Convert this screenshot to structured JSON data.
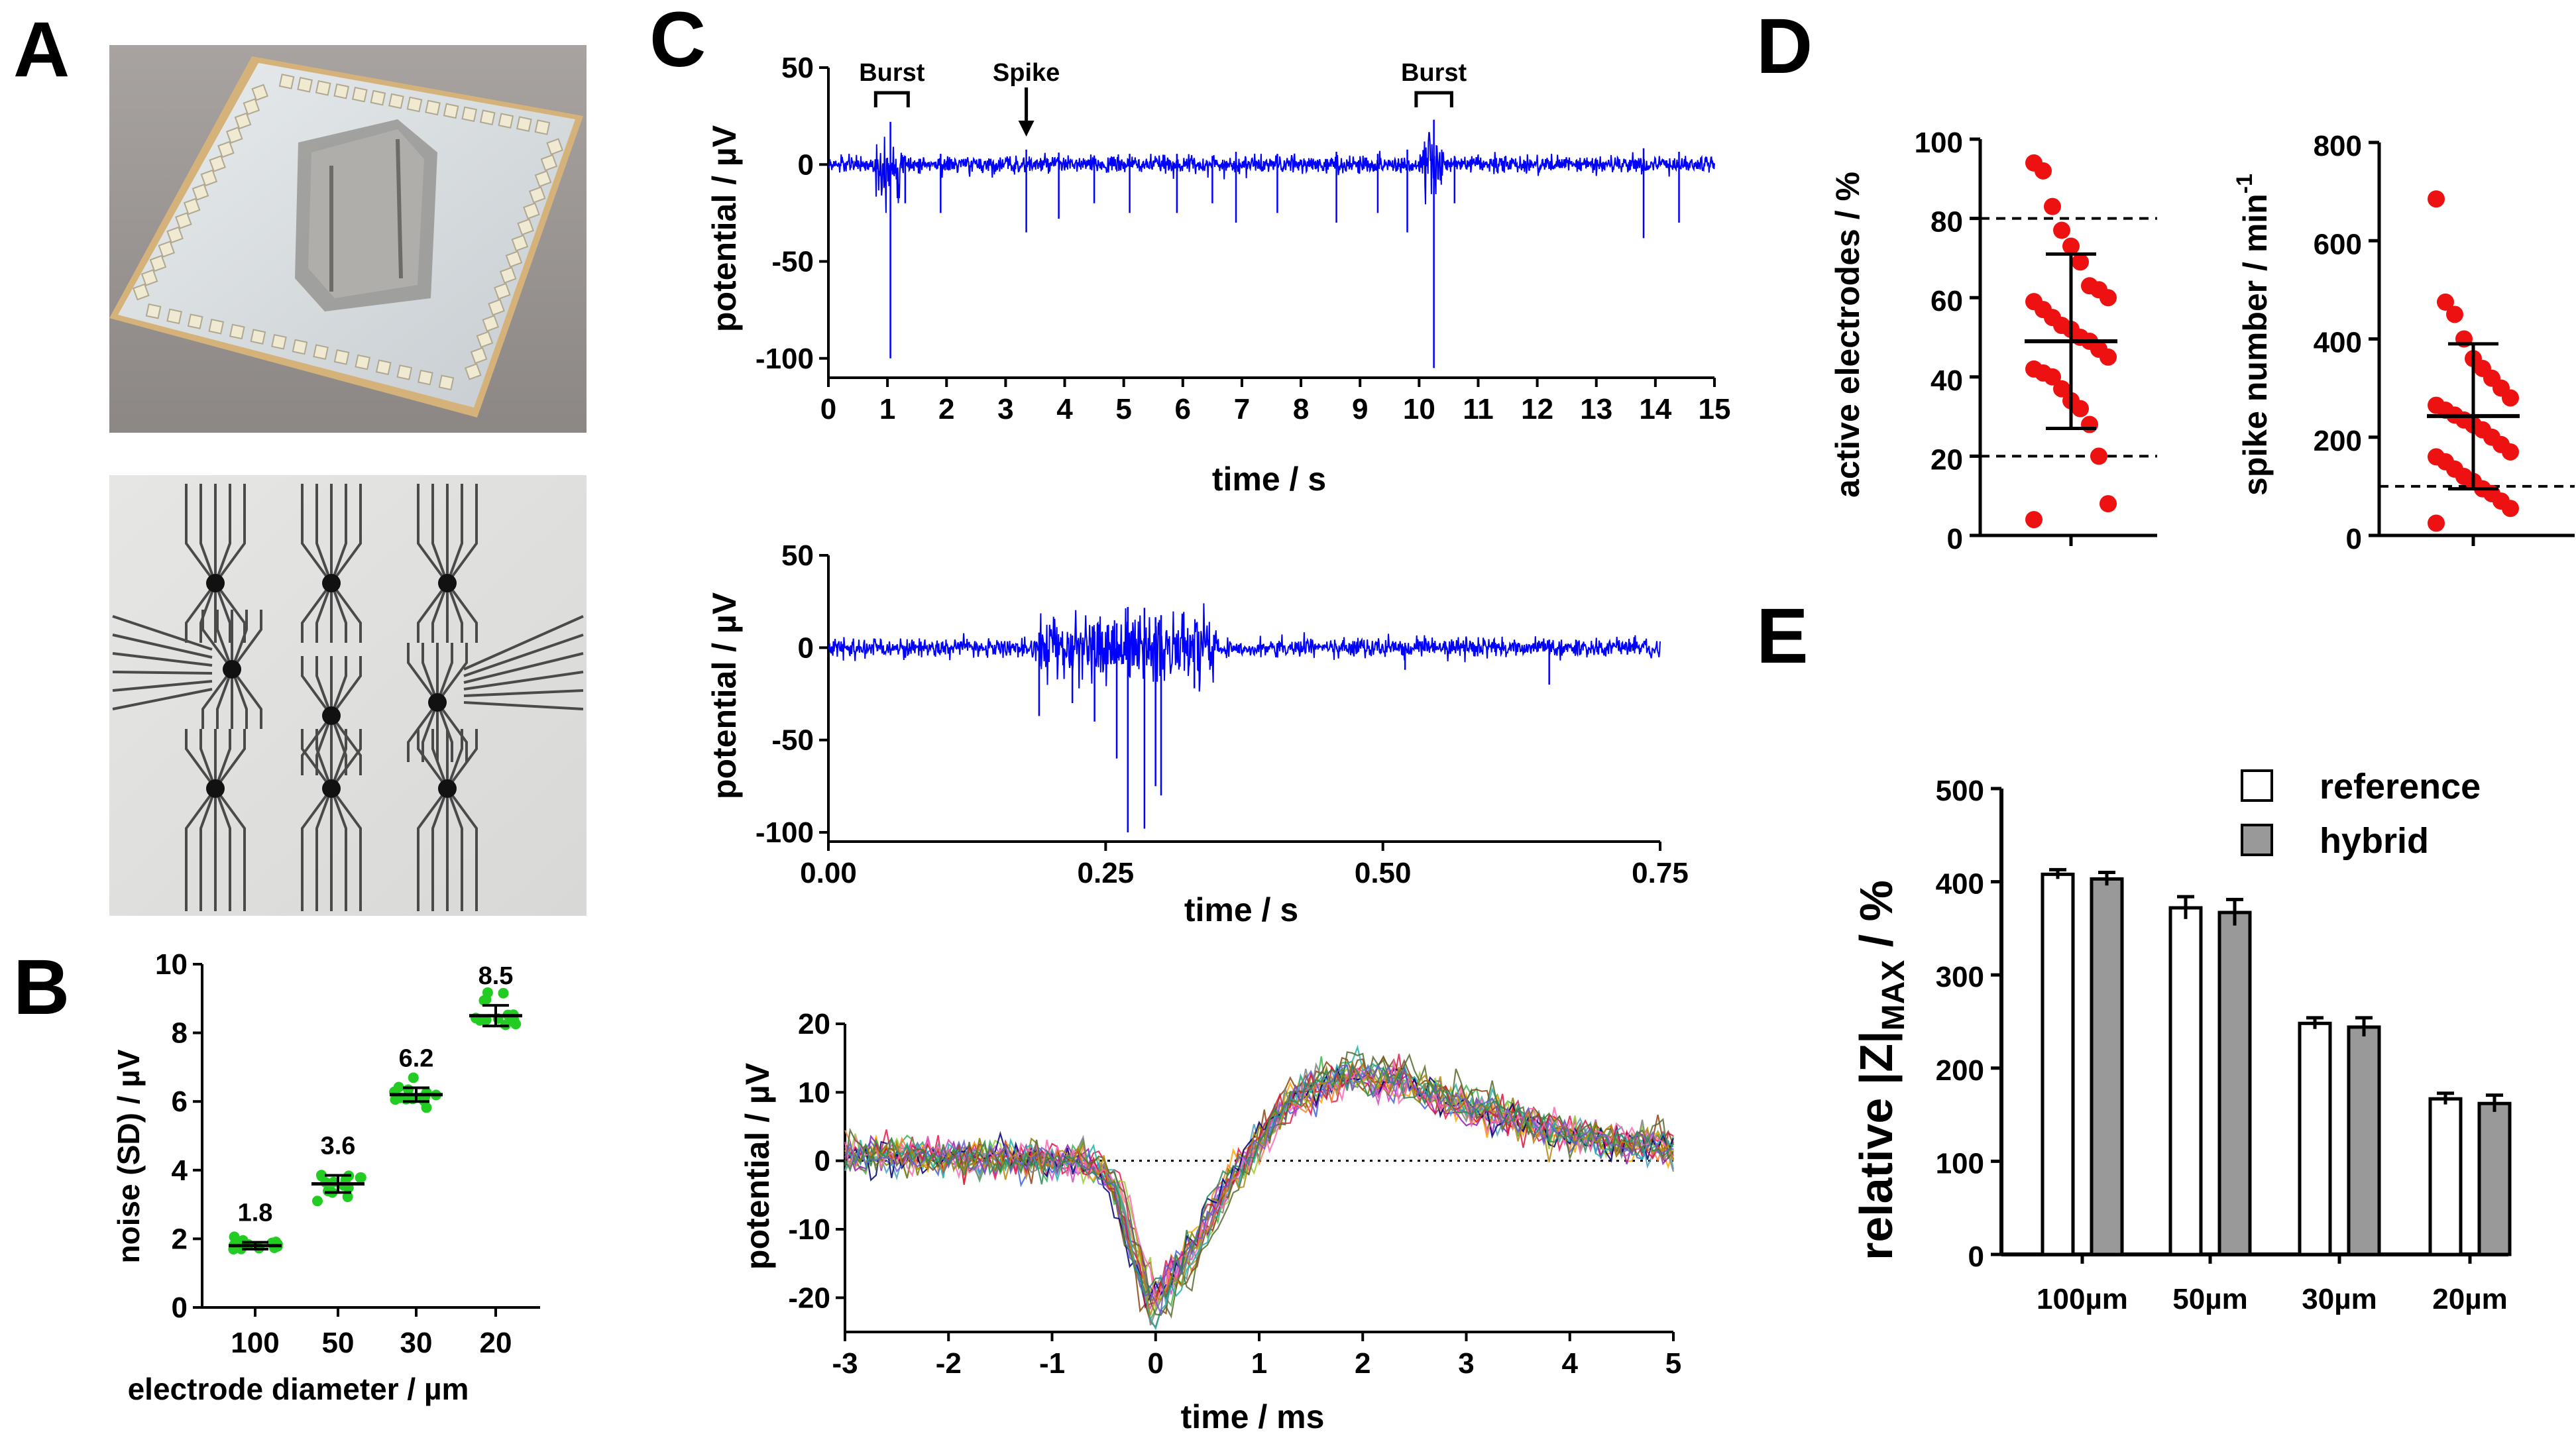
{
  "panel_labels": {
    "a": "A",
    "b": "B",
    "c": "C",
    "d": "D",
    "e": "E"
  },
  "chart_data": [
    {
      "id": "B",
      "type": "scatter",
      "categories": [
        "100",
        "50",
        "30",
        "20"
      ],
      "means": [
        1.8,
        3.6,
        6.2,
        8.5
      ],
      "sd": [
        0.1,
        0.25,
        0.2,
        0.3
      ],
      "value_labels": [
        "1.8",
        "3.6",
        "6.2",
        "8.5"
      ],
      "xlabel": "electrode diameter / µm",
      "ylabel": "noise (SD) / µV",
      "ylim": [
        0,
        10
      ],
      "yticks": [
        "0",
        "2",
        "4",
        "6",
        "8",
        "10"
      ],
      "point_color": "#22cc22"
    },
    {
      "id": "C1",
      "type": "line",
      "xlabel": "time / s",
      "ylabel": "potential / µV",
      "xlim": [
        0,
        15
      ],
      "ylim": [
        -110,
        50
      ],
      "xticks": [
        "0",
        "1",
        "2",
        "3",
        "4",
        "5",
        "6",
        "7",
        "8",
        "9",
        "10",
        "11",
        "12",
        "13",
        "14",
        "15"
      ],
      "yticks": [
        "50",
        "0",
        "-50",
        "-100"
      ],
      "annotations": [
        {
          "text": "Burst",
          "x_start": 0.8,
          "x_end": 1.35
        },
        {
          "text": "Spike",
          "x": 3.35
        },
        {
          "text": "Burst",
          "x_start": 9.95,
          "x_end": 10.55
        }
      ],
      "spikes": [
        {
          "t": 1.05,
          "amp": -100
        },
        {
          "t": 10.25,
          "amp": -105
        },
        {
          "t": 1.3,
          "amp": -20
        },
        {
          "t": 1.9,
          "amp": -25
        },
        {
          "t": 3.35,
          "amp": -35
        },
        {
          "t": 3.9,
          "amp": -28
        },
        {
          "t": 4.5,
          "amp": -20
        },
        {
          "t": 5.1,
          "amp": -25
        },
        {
          "t": 5.9,
          "amp": -25
        },
        {
          "t": 6.5,
          "amp": -20
        },
        {
          "t": 6.9,
          "amp": -30
        },
        {
          "t": 7.6,
          "amp": -25
        },
        {
          "t": 8.6,
          "amp": -30
        },
        {
          "t": 9.3,
          "amp": -25
        },
        {
          "t": 9.8,
          "amp": -35
        },
        {
          "t": 10.6,
          "amp": -20
        },
        {
          "t": 13.8,
          "amp": -38
        },
        {
          "t": 14.4,
          "amp": -30
        }
      ],
      "color": "#0000ff"
    },
    {
      "id": "C2",
      "type": "line",
      "xlabel": "time / s",
      "ylabel": "potential / µV",
      "xlim": [
        0,
        0.75
      ],
      "ylim": [
        -105,
        50
      ],
      "xticks": [
        "0.00",
        "0.25",
        "0.50",
        "0.75"
      ],
      "yticks": [
        "50",
        "0",
        "-50",
        "-100"
      ],
      "spikes": [
        {
          "t": 0.19,
          "amp": -37
        },
        {
          "t": 0.26,
          "amp": -60
        },
        {
          "t": 0.27,
          "amp": -100
        },
        {
          "t": 0.285,
          "amp": -98
        },
        {
          "t": 0.295,
          "amp": -75
        },
        {
          "t": 0.3,
          "amp": -80
        },
        {
          "t": 0.24,
          "amp": -40
        },
        {
          "t": 0.22,
          "amp": -30
        },
        {
          "t": 0.33,
          "amp": -22
        },
        {
          "t": 0.52,
          "amp": -12
        },
        {
          "t": 0.65,
          "amp": -20
        }
      ],
      "color": "#0000ff"
    },
    {
      "id": "C3",
      "type": "line",
      "xlabel": "time / ms",
      "ylabel": "potential / µV",
      "xlim": [
        -3,
        5
      ],
      "ylim": [
        -25,
        20
      ],
      "xticks": [
        "-3",
        "-2",
        "-1",
        "0",
        "1",
        "2",
        "3",
        "4",
        "5"
      ],
      "yticks": [
        "20",
        "10",
        "0",
        "-10",
        "-20"
      ],
      "template": {
        "t": [
          -3,
          -0.7,
          -0.4,
          -0.05,
          0.3,
          0.7,
          1.0,
          1.3,
          1.8,
          2.4,
          3.0,
          4.0,
          5.0
        ],
        "v": [
          1,
          0,
          -3,
          -22,
          -15,
          -4,
          3,
          9,
          13,
          12,
          8,
          4,
          2
        ]
      },
      "trace_count": 20,
      "colors": [
        "#e6194b",
        "#3cb44b",
        "#ffa500",
        "#4363d8",
        "#f58231",
        "#911eb4",
        "#46a0c0",
        "#d04ec0",
        "#9acd32",
        "#8b4513",
        "#808000",
        "#000075",
        "#808080",
        "#dc143c",
        "#20b2aa",
        "#ff69b4",
        "#556b2f",
        "#b8860b",
        "#6a5acd",
        "#2e8b57"
      ]
    },
    {
      "id": "D1",
      "type": "scatter",
      "ylabel": "active electrodes / %",
      "ylim": [
        0,
        100
      ],
      "yticks": [
        "100",
        "80",
        "60",
        "40",
        "20",
        "0"
      ],
      "mean": 49,
      "sd_low": 27,
      "sd_high": 71,
      "threshold_lines": [
        80,
        20
      ],
      "values": [
        94,
        92,
        83,
        77,
        73,
        69,
        63,
        62,
        60,
        59,
        57,
        55,
        53,
        52,
        50,
        49,
        47,
        45,
        42,
        41,
        40,
        37,
        34,
        32,
        28,
        20,
        8,
        4
      ],
      "point_color": "#ee1111"
    },
    {
      "id": "D2",
      "type": "scatter",
      "ylabel": "spike number / min",
      "ylabel_superscript": "-1",
      "ylim": [
        0,
        800
      ],
      "yticks": [
        "800",
        "600",
        "400",
        "200",
        "0"
      ],
      "mean": 243,
      "sd_low": 95,
      "sd_high": 390,
      "threshold_lines": [
        100
      ],
      "values": [
        685,
        475,
        450,
        400,
        360,
        340,
        320,
        300,
        280,
        265,
        255,
        245,
        235,
        225,
        215,
        200,
        185,
        170,
        160,
        150,
        135,
        120,
        110,
        95,
        85,
        70,
        55,
        25
      ],
      "point_color": "#ee1111"
    },
    {
      "id": "E",
      "type": "bar",
      "categories": [
        "100µm",
        "50µm",
        "30µm",
        "20µm"
      ],
      "series": [
        {
          "name": "reference",
          "values": [
            408,
            372,
            248,
            167
          ],
          "err": [
            5,
            12,
            6,
            6
          ],
          "color": "#ffffff"
        },
        {
          "name": "hybrid",
          "values": [
            403,
            367,
            244,
            162
          ],
          "err": [
            7,
            14,
            10,
            9
          ],
          "color": "#999999"
        }
      ],
      "ylabel": "relative |Z|",
      "ylabel_sub": "MAX",
      "ylabel_suffix": " / %",
      "ylim": [
        0,
        500
      ],
      "yticks": [
        "500",
        "400",
        "300",
        "200",
        "100",
        "0"
      ]
    }
  ]
}
